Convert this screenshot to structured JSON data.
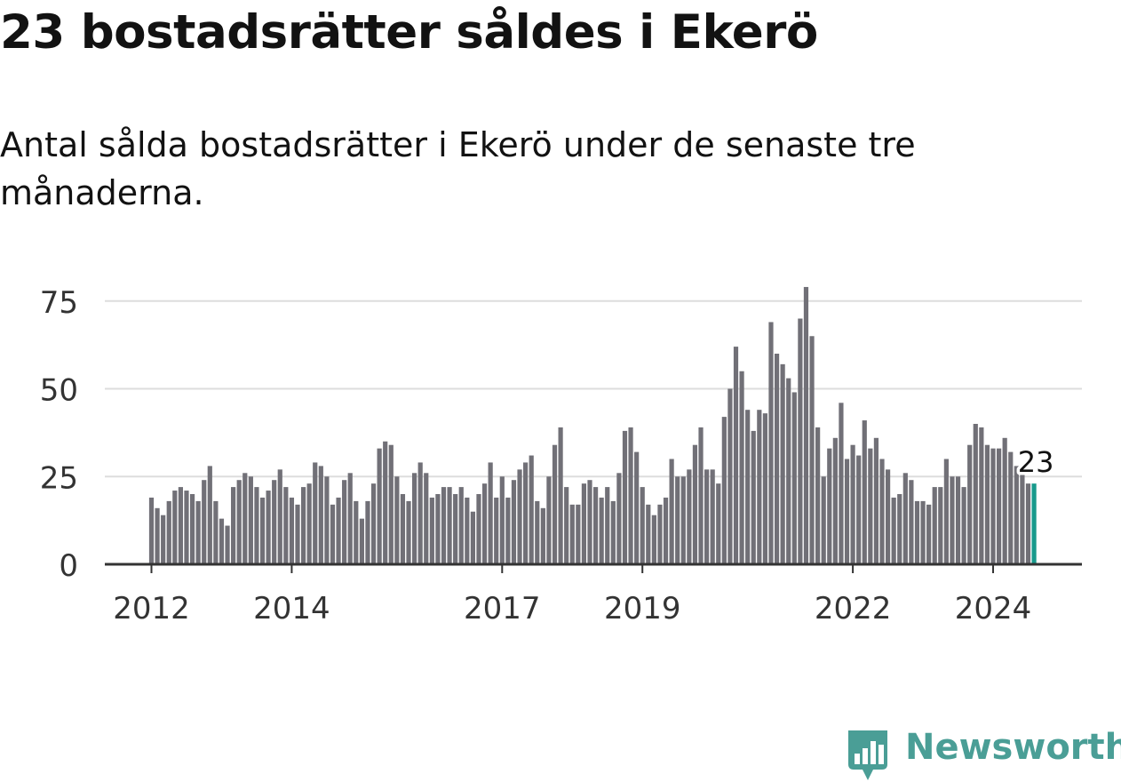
{
  "header": {
    "title": "23 bostadsrätter såldes i Ekerö",
    "subtitle": "Antal sålda bostadsrätter i Ekerö under de senaste tre månaderna."
  },
  "brand": {
    "name": "Newsworthy",
    "color": "#4a9e96"
  },
  "colors": {
    "bar": "#717077",
    "highlight": "#189a8c",
    "grid": "#dddddd",
    "axis": "#333333"
  },
  "chart_data": {
    "type": "bar",
    "title": "23 bostadsrätter såldes i Ekerö",
    "xlabel": "",
    "ylabel": "",
    "ylim": [
      0,
      80
    ],
    "yticks": [
      0,
      25,
      50,
      75
    ],
    "xtick_labels": [
      {
        "label": "2012",
        "index": 0
      },
      {
        "label": "2014",
        "index": 24
      },
      {
        "label": "2017",
        "index": 60
      },
      {
        "label": "2019",
        "index": 84
      },
      {
        "label": "2022",
        "index": 120
      },
      {
        "label": "2024",
        "index": 144
      }
    ],
    "start_period": "2012-01",
    "values": [
      19,
      16,
      14,
      18,
      21,
      22,
      21,
      20,
      18,
      24,
      28,
      18,
      13,
      11,
      22,
      24,
      26,
      25,
      22,
      19,
      21,
      24,
      27,
      22,
      19,
      17,
      22,
      23,
      29,
      28,
      25,
      17,
      19,
      24,
      26,
      18,
      13,
      18,
      23,
      33,
      35,
      34,
      25,
      20,
      18,
      26,
      29,
      26,
      19,
      20,
      22,
      22,
      20,
      22,
      19,
      15,
      20,
      23,
      29,
      19,
      25,
      19,
      24,
      27,
      29,
      31,
      18,
      16,
      25,
      34,
      39,
      22,
      17,
      17,
      23,
      24,
      22,
      19,
      22,
      18,
      26,
      38,
      39,
      32,
      22,
      17,
      14,
      17,
      19,
      30,
      25,
      25,
      27,
      34,
      39,
      27,
      27,
      23,
      42,
      50,
      62,
      55,
      44,
      38,
      44,
      43,
      69,
      60,
      57,
      53,
      49,
      70,
      79,
      65,
      39,
      25,
      33,
      36,
      46,
      30,
      34,
      31,
      41,
      33,
      36,
      30,
      27,
      19,
      20,
      26,
      24,
      18,
      18,
      17,
      22,
      22,
      30,
      25,
      25,
      22,
      34,
      40,
      39,
      34,
      33,
      33,
      36,
      32,
      28,
      27,
      23,
      23
    ],
    "highlight_index": 151,
    "highlight_label": "23"
  }
}
